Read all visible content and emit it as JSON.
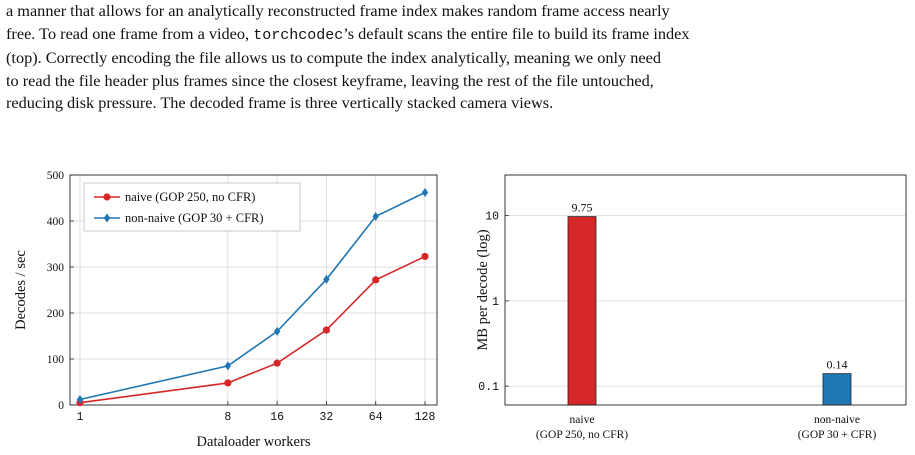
{
  "caption": {
    "line1": "a manner that allows for an analytically reconstructed frame index makes random frame access nearly",
    "line2_a": "free. To read one frame from a video, ",
    "line2_code": "torchcodec",
    "line2_b": "’s default scans the entire file to build its frame index",
    "line3": "(top). Correctly encoding the file allows us to compute the index analytically, meaning we only need",
    "line4": "to read the file header plus frames since the closest keyframe, leaving the rest of the file untouched,",
    "line5": "reducing disk pressure. The decoded frame is three vertically stacked camera views."
  },
  "chart_data": [
    {
      "type": "line",
      "xlabel": "Dataloader workers",
      "ylabel": "Decodes / sec",
      "x": [
        1,
        8,
        16,
        32,
        64,
        128
      ],
      "x_tick_labels": [
        "1",
        "8",
        "16",
        "32",
        "64",
        "128"
      ],
      "x_scale": "log2",
      "ylim": [
        0,
        500
      ],
      "y_ticks": [
        0,
        100,
        200,
        300,
        400,
        500
      ],
      "y_tick_labels": [
        "0",
        "100",
        "200",
        "300",
        "400",
        "500"
      ],
      "grid": true,
      "legend_position": "top-left",
      "series": [
        {
          "name": "naive (GOP 250, no CFR)",
          "color": "#d62728",
          "marker": "circle",
          "values": [
            5,
            48,
            91,
            163,
            272,
            323
          ]
        },
        {
          "name": "non-naive (GOP 30 + CFR)",
          "color": "#1f77b4",
          "marker": "diamond",
          "values": [
            12,
            85,
            160,
            273,
            410,
            462
          ]
        }
      ]
    },
    {
      "type": "bar",
      "ylabel": "MB per decode (log)",
      "y_scale": "log",
      "ylim": [
        0.06,
        30
      ],
      "y_ticks": [
        0.1,
        1,
        10
      ],
      "y_tick_labels": [
        "0.1",
        "1",
        "10"
      ],
      "grid": true,
      "categories": [
        {
          "line1": "naive",
          "line2": "(GOP 250, no CFR)"
        },
        {
          "line1": "non-naive",
          "line2": "(GOP 30 + CFR)"
        }
      ],
      "values": [
        9.75,
        0.14
      ],
      "value_labels": [
        "9.75",
        "0.14"
      ],
      "colors": [
        "#d62728",
        "#1f77b4"
      ]
    }
  ]
}
